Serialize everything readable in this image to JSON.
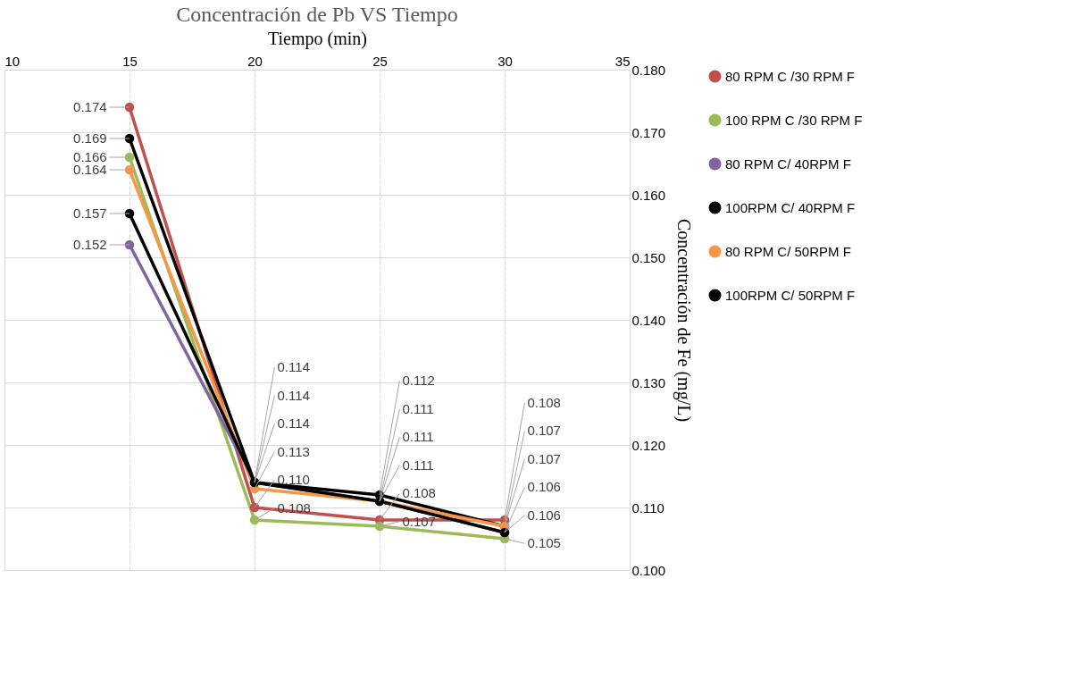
{
  "chart_data": {
    "type": "line",
    "title": "Concentración de Pb VS Tiempo",
    "xlabel": "Tiempo  (min)",
    "ylabel": "Concentración  de Fe (mg/L)",
    "x": [
      15,
      20,
      25,
      30
    ],
    "xlim": [
      10,
      35
    ],
    "xticks": [
      10,
      15,
      20,
      25,
      30,
      35
    ],
    "ylim": [
      0.1,
      0.18
    ],
    "yticks": [
      {
        "value": 0.1,
        "label": "0.100"
      },
      {
        "value": 0.11,
        "label": "0.110"
      },
      {
        "value": 0.12,
        "label": "0.120"
      },
      {
        "value": 0.13,
        "label": "0.130"
      },
      {
        "value": 0.14,
        "label": "0.140"
      },
      {
        "value": 0.15,
        "label": "0.150"
      },
      {
        "value": 0.16,
        "label": "0.160"
      },
      {
        "value": 0.17,
        "label": "0.170"
      },
      {
        "value": 0.18,
        "label": "0.180"
      }
    ],
    "grid": true,
    "legend": "right",
    "marker": "circle",
    "line_style": "solid",
    "series": [
      {
        "name": "80 RPM C /30 RPM F",
        "color": "#c0504d",
        "values": [
          0.174,
          0.11,
          0.108,
          0.108
        ],
        "value_labels": [
          "0.174",
          "0.110",
          "0.108",
          "0.108"
        ]
      },
      {
        "name": "100 RPM C /30 RPM F",
        "color": "#9bbb59",
        "values": [
          0.166,
          0.108,
          0.107,
          0.105
        ],
        "value_labels": [
          "0.166",
          "0.108",
          "0.107",
          "0.105"
        ]
      },
      {
        "name": "80 RPM C/ 40RPM F",
        "color": "#8064a2",
        "values": [
          0.152,
          0.114,
          0.111,
          0.106
        ],
        "value_labels": [
          "0.152",
          "0.114",
          "0.111",
          "0.106"
        ]
      },
      {
        "name": "100RPM C/ 40RPM F",
        "color": "#000000",
        "values": [
          0.169,
          0.114,
          0.112,
          0.107
        ],
        "value_labels": [
          "0.169",
          "0.114",
          "0.112",
          "0.107"
        ]
      },
      {
        "name": "80 RPM C/ 50RPM F",
        "color": "#f79646",
        "values": [
          0.164,
          0.113,
          0.111,
          0.107
        ],
        "value_labels": [
          "0.164",
          "0.113",
          "0.111",
          "0.107"
        ]
      },
      {
        "name": "100RPM C/ 50RPM F",
        "color": "#000000",
        "values": [
          0.157,
          0.114,
          0.111,
          0.106
        ],
        "value_labels": [
          "0.157",
          "0.114",
          "0.111",
          "0.106"
        ]
      }
    ]
  }
}
